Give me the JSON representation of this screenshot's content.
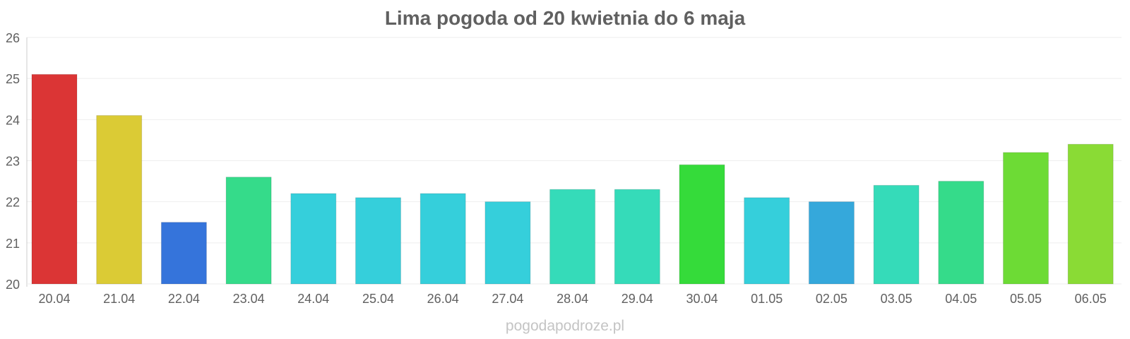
{
  "chart_data": {
    "type": "bar",
    "title": "Lima pogoda od 20 kwietnia do 6 maja",
    "xlabel": "",
    "ylabel": "",
    "categories": [
      "20.04",
      "21.04",
      "22.04",
      "23.04",
      "24.04",
      "25.04",
      "26.04",
      "27.04",
      "28.04",
      "29.04",
      "30.04",
      "01.05",
      "02.05",
      "03.05",
      "04.05",
      "05.05",
      "06.05"
    ],
    "values": [
      25.1,
      24.1,
      21.5,
      22.6,
      22.2,
      22.1,
      22.2,
      22.0,
      22.3,
      22.3,
      22.9,
      22.1,
      22.0,
      22.4,
      22.5,
      23.2,
      23.4
    ],
    "colors": [
      "#db3535",
      "#dbcb35",
      "#3574db",
      "#35db8a",
      "#35cfdb",
      "#35cfdb",
      "#35cfdb",
      "#35cfdb",
      "#35dbb9",
      "#35dbb9",
      "#35db3a",
      "#35cfdb",
      "#35a8db",
      "#35dbb9",
      "#35db8a",
      "#6ddb35",
      "#8adb35"
    ],
    "ylim": [
      20,
      26
    ],
    "yticks": [
      "20",
      "21",
      "22",
      "23",
      "24",
      "25",
      "26"
    ],
    "grid": true
  },
  "footer": {
    "watermark": "pogodapodroze.pl"
  },
  "style": {
    "axis_color": "#cccccc",
    "grid_color": "#eeeeee",
    "tick_text_color": "#606060"
  }
}
